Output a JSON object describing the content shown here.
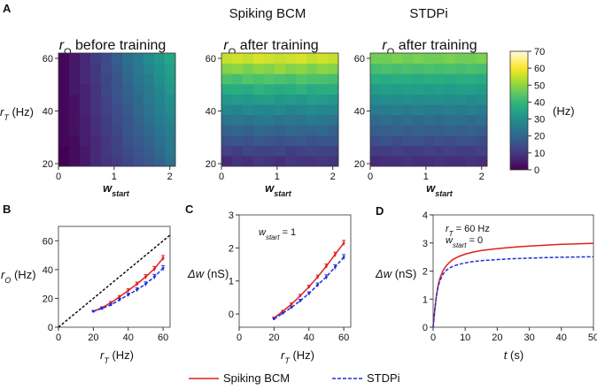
{
  "panel_labels": {
    "A": "A",
    "B": "B",
    "C": "C",
    "D": "D"
  },
  "column_titles": {
    "spiking": "Spiking BCM",
    "stdpi": "STDPi"
  },
  "chart_data": [
    {
      "type": "heatmap",
      "id": "A1",
      "title": "r_O before training",
      "title_main": "r",
      "title_sub": "O",
      "title_rest": " before training",
      "xlabel_main": "w",
      "xlabel_sub": "start",
      "ylabel_main": "r",
      "ylabel_sub": "T",
      "ylabel_rest": " (Hz)",
      "xticks": [
        "0",
        "1",
        "2"
      ],
      "yticks": [
        "20",
        "40",
        "60"
      ],
      "xlim": [
        0,
        2.1
      ],
      "ylim": [
        19,
        62
      ],
      "values": [
        [
          0,
          2,
          4,
          7,
          9,
          11,
          13,
          15,
          17,
          19,
          22
        ],
        [
          0,
          2,
          4,
          7,
          10,
          12,
          14,
          16,
          18,
          21,
          24
        ],
        [
          1,
          2,
          5,
          7,
          10,
          12,
          15,
          17,
          19,
          22,
          25
        ],
        [
          1,
          3,
          5,
          8,
          11,
          13,
          16,
          18,
          21,
          23,
          26
        ],
        [
          1,
          3,
          5,
          8,
          11,
          14,
          16,
          19,
          22,
          25,
          27
        ],
        [
          1,
          3,
          6,
          9,
          12,
          14,
          17,
          20,
          23,
          26,
          29
        ],
        [
          1,
          3,
          6,
          9,
          12,
          15,
          18,
          21,
          24,
          27,
          30
        ],
        [
          1,
          4,
          6,
          9,
          13,
          16,
          19,
          22,
          25,
          28,
          32
        ],
        [
          1,
          4,
          7,
          10,
          13,
          16,
          20,
          23,
          26,
          30,
          33
        ],
        [
          1,
          4,
          7,
          10,
          14,
          17,
          21,
          24,
          28,
          31,
          34
        ],
        [
          1,
          4,
          7,
          11,
          14,
          18,
          22,
          25,
          29,
          32,
          36
        ]
      ]
    },
    {
      "type": "heatmap",
      "id": "A2",
      "title": "r_O after training",
      "title_main": "r",
      "title_sub": "O",
      "title_rest": " after training",
      "xlabel_main": "w",
      "xlabel_sub": "start",
      "xticks": [
        "0",
        "1",
        "2"
      ],
      "yticks": [
        "20",
        "40",
        "60"
      ],
      "xlim": [
        0,
        2.1
      ],
      "ylim": [
        19,
        62
      ],
      "values": [
        [
          7,
          9,
          8,
          10,
          9,
          8,
          10,
          9,
          9,
          10,
          9
        ],
        [
          12,
          11,
          13,
          12,
          12,
          13,
          11,
          12,
          13,
          12,
          12
        ],
        [
          15,
          16,
          15,
          17,
          16,
          15,
          16,
          17,
          15,
          16,
          16
        ],
        [
          19,
          20,
          19,
          21,
          20,
          19,
          21,
          20,
          20,
          21,
          19
        ],
        [
          23,
          24,
          23,
          24,
          25,
          23,
          24,
          23,
          25,
          24,
          23
        ],
        [
          28,
          27,
          29,
          28,
          28,
          29,
          27,
          28,
          29,
          28,
          28
        ],
        [
          32,
          33,
          32,
          33,
          34,
          32,
          33,
          32,
          34,
          33,
          32
        ],
        [
          37,
          38,
          37,
          39,
          38,
          37,
          38,
          39,
          37,
          38,
          38
        ],
        [
          43,
          42,
          44,
          43,
          44,
          43,
          42,
          44,
          43,
          43,
          42
        ],
        [
          49,
          50,
          48,
          50,
          49,
          51,
          49,
          50,
          48,
          50,
          49
        ],
        [
          55,
          56,
          55,
          57,
          56,
          55,
          56,
          57,
          55,
          56,
          55
        ]
      ]
    },
    {
      "type": "heatmap",
      "id": "A3",
      "title": "r_O after training",
      "title_main": "r",
      "title_sub": "O",
      "title_rest": " after training",
      "xlabel_main": "w",
      "xlabel_sub": "start",
      "xticks": [
        "0",
        "1",
        "2"
      ],
      "yticks": [
        "20",
        "40",
        "60"
      ],
      "xlim": [
        0,
        2.1
      ],
      "ylim": [
        19,
        62
      ],
      "values": [
        [
          7,
          8,
          8,
          9,
          8,
          8,
          9,
          8,
          8,
          9,
          8
        ],
        [
          11,
          11,
          12,
          11,
          11,
          12,
          11,
          12,
          11,
          11,
          12
        ],
        [
          14,
          15,
          14,
          15,
          15,
          14,
          15,
          14,
          15,
          15,
          14
        ],
        [
          18,
          18,
          19,
          18,
          19,
          18,
          18,
          19,
          18,
          19,
          18
        ],
        [
          21,
          22,
          21,
          22,
          21,
          22,
          21,
          22,
          22,
          21,
          22
        ],
        [
          25,
          25,
          26,
          25,
          26,
          25,
          25,
          26,
          25,
          26,
          25
        ],
        [
          29,
          30,
          29,
          30,
          29,
          30,
          30,
          29,
          30,
          29,
          30
        ],
        [
          33,
          34,
          33,
          34,
          34,
          33,
          34,
          33,
          34,
          34,
          33
        ],
        [
          38,
          37,
          38,
          38,
          37,
          38,
          38,
          37,
          38,
          38,
          37
        ],
        [
          42,
          43,
          42,
          43,
          42,
          43,
          42,
          43,
          42,
          43,
          42
        ],
        [
          47,
          47,
          48,
          47,
          48,
          47,
          47,
          48,
          47,
          47,
          48
        ]
      ]
    },
    {
      "type": "colorbar",
      "id": "cbar",
      "ticks": [
        "0",
        "10",
        "20",
        "30",
        "40",
        "50",
        "60",
        "70"
      ],
      "range": [
        0,
        70
      ],
      "label": "(Hz)"
    },
    {
      "type": "line",
      "id": "B",
      "xlabel_main": "r",
      "xlabel_sub": "T",
      "xlabel_rest": " (Hz)",
      "ylabel_main": "r",
      "ylabel_sub": "O",
      "ylabel_rest": " (Hz)",
      "xlim": [
        0,
        64
      ],
      "ylim": [
        0,
        70
      ],
      "xticks": [
        "0",
        "20",
        "40",
        "60"
      ],
      "yticks": [
        "0",
        "20",
        "40",
        "60"
      ],
      "x": [
        20,
        25,
        30,
        35,
        40,
        45,
        50,
        55,
        60
      ],
      "series": [
        {
          "name": "identity",
          "style": "dotted",
          "color": "#000000",
          "x": [
            0,
            64
          ],
          "values": [
            0,
            64
          ]
        },
        {
          "name": "Spiking BCM",
          "color": "#e02020",
          "values": [
            11,
            13.5,
            17,
            21,
            25.5,
            30,
            35,
            40.5,
            48
          ]
        },
        {
          "name": "STDPi",
          "color": "#1f2fd6",
          "dashed": true,
          "values": [
            11,
            13,
            15.5,
            19,
            22.5,
            26,
            30,
            35,
            41
          ]
        }
      ]
    },
    {
      "type": "line",
      "id": "C",
      "xlabel_main": "r",
      "xlabel_sub": "T",
      "xlabel_rest": " (Hz)",
      "ylabel_main": "Δw",
      "ylabel_rest": " (nS)",
      "annot_main": "w",
      "annot_sub": "start",
      "annot_rest": " = 1",
      "xlim": [
        0,
        64
      ],
      "ylim": [
        -0.4,
        3
      ],
      "xticks": [
        "0",
        "20",
        "40",
        "60"
      ],
      "yticks": [
        "0",
        "1",
        "2",
        "3"
      ],
      "x": [
        20,
        25,
        30,
        35,
        40,
        45,
        50,
        55,
        60
      ],
      "series": [
        {
          "name": "Spiking BCM",
          "color": "#e02020",
          "values": [
            -0.12,
            0.08,
            0.3,
            0.55,
            0.82,
            1.12,
            1.45,
            1.8,
            2.15
          ]
        },
        {
          "name": "STDPi",
          "color": "#1f2fd6",
          "dashed": true,
          "values": [
            -0.15,
            0.02,
            0.2,
            0.4,
            0.62,
            0.88,
            1.12,
            1.42,
            1.72
          ]
        }
      ]
    },
    {
      "type": "line",
      "id": "D",
      "xlabel_main": "t",
      "xlabel_rest": " (s)",
      "ylabel_main": "Δw",
      "ylabel_rest": " (nS)",
      "annot1_main": "r",
      "annot1_sub": "T",
      "annot1_rest": " = 60 Hz",
      "annot2_main": "w",
      "annot2_sub": "start",
      "annot2_rest": " = 0",
      "xlim": [
        0,
        50
      ],
      "ylim": [
        0,
        4
      ],
      "xticks": [
        "0",
        "10",
        "20",
        "30",
        "40",
        "50"
      ],
      "yticks": [
        "0",
        "1",
        "2",
        "3",
        "4"
      ],
      "x": [
        0,
        0.5,
        1,
        1.5,
        2,
        3,
        4,
        5,
        6,
        8,
        10,
        12,
        15,
        20,
        25,
        30,
        35,
        40,
        45,
        50
      ],
      "series": [
        {
          "name": "Spiking BCM",
          "color": "#e02020",
          "values": [
            0,
            0.6,
            1.1,
            1.45,
            1.7,
            2.0,
            2.18,
            2.3,
            2.4,
            2.52,
            2.6,
            2.66,
            2.73,
            2.8,
            2.85,
            2.89,
            2.92,
            2.95,
            2.97,
            2.99
          ]
        },
        {
          "name": "STDPi",
          "color": "#1f2fd6",
          "dashed": true,
          "values": [
            0,
            0.6,
            1.08,
            1.4,
            1.62,
            1.88,
            2.02,
            2.1,
            2.16,
            2.24,
            2.29,
            2.33,
            2.37,
            2.41,
            2.44,
            2.46,
            2.48,
            2.49,
            2.5,
            2.51
          ]
        }
      ]
    }
  ],
  "legend": {
    "spiking": "Spiking BCM",
    "stdpi": "STDPi",
    "spiking_color": "#e02020",
    "stdpi_color": "#1f2fd6"
  }
}
